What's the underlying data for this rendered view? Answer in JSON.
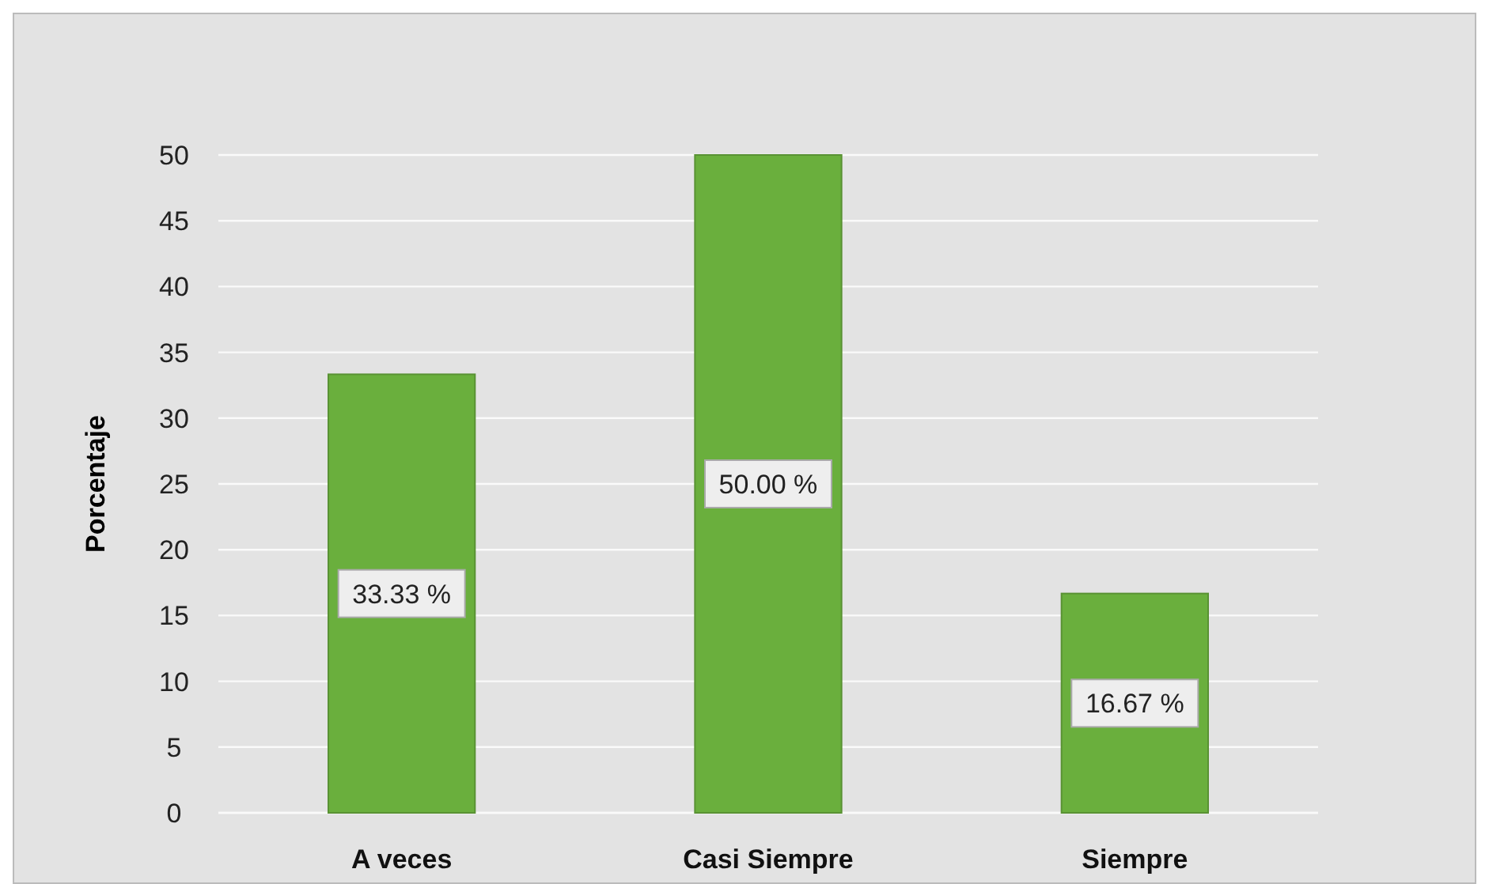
{
  "chart_data": {
    "type": "bar",
    "ylabel": "Porcentaje",
    "categories": [
      "A veces",
      "Casi Siempre",
      "Siempre"
    ],
    "values": [
      33.33,
      50,
      16.67
    ],
    "color": "#6aaf3d",
    "value_labels": [
      "33.33 %",
      "50.00 %",
      "16.67 %"
    ],
    "ylim": [
      0,
      50
    ],
    "yticks": [
      0,
      5,
      10,
      15,
      20,
      25,
      30,
      35,
      40,
      45,
      50
    ],
    "grid": "y"
  }
}
